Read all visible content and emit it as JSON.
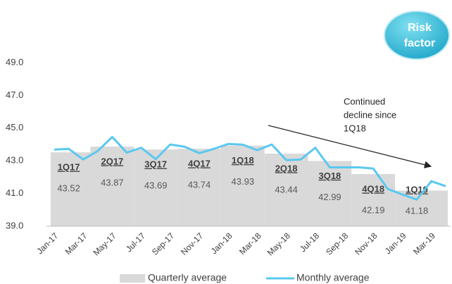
{
  "chart_data": {
    "type": "line",
    "categories": [
      "Jan-17",
      null,
      "Mar-17",
      null,
      "May-17",
      null,
      "Jul-17",
      null,
      "Sep-17",
      null,
      "Nov-17",
      null,
      "Jan-18",
      null,
      "Mar-18",
      null,
      "May-18",
      null,
      "Jul-18",
      null,
      "Sep-18",
      null,
      "Nov-18",
      null,
      "Jan-19",
      null,
      "Mar-19",
      null
    ],
    "series": [
      {
        "name": "Monthly average",
        "color": "#5bc8f0",
        "values": [
          43.69,
          43.73,
          43.08,
          43.6,
          44.46,
          43.5,
          43.8,
          43.1,
          44.0,
          43.86,
          43.47,
          43.73,
          44.03,
          43.99,
          43.65,
          44.0,
          43.04,
          43.08,
          43.8,
          42.6,
          42.6,
          42.6,
          42.53,
          41.28,
          40.94,
          40.63,
          41.75,
          41.45
        ]
      }
    ],
    "quarters": {
      "name": "Quarterly average",
      "color": "#d9d9d9",
      "labels": [
        "1Q17",
        "2Q17",
        "3Q17",
        "4Q17",
        "1Q18",
        "2Q18",
        "3Q18",
        "4Q18",
        "1Q19"
      ],
      "values": [
        43.52,
        43.87,
        43.69,
        43.74,
        43.93,
        43.44,
        42.99,
        42.19,
        41.18
      ]
    },
    "ylim": [
      39,
      49
    ],
    "yticks": [
      {
        "value": 39,
        "label": "39.0"
      },
      {
        "value": 41,
        "label": "41.0"
      },
      {
        "value": 43,
        "label": "43.0"
      },
      {
        "value": 45,
        "label": "45.0"
      },
      {
        "value": 47,
        "label": "47.0"
      },
      {
        "value": 49,
        "label": "49.0"
      }
    ],
    "annotation": [
      "Continued",
      "decline since",
      "1Q18"
    ],
    "badge": [
      "Risk",
      "factor"
    ],
    "legend_position": "bottom"
  }
}
